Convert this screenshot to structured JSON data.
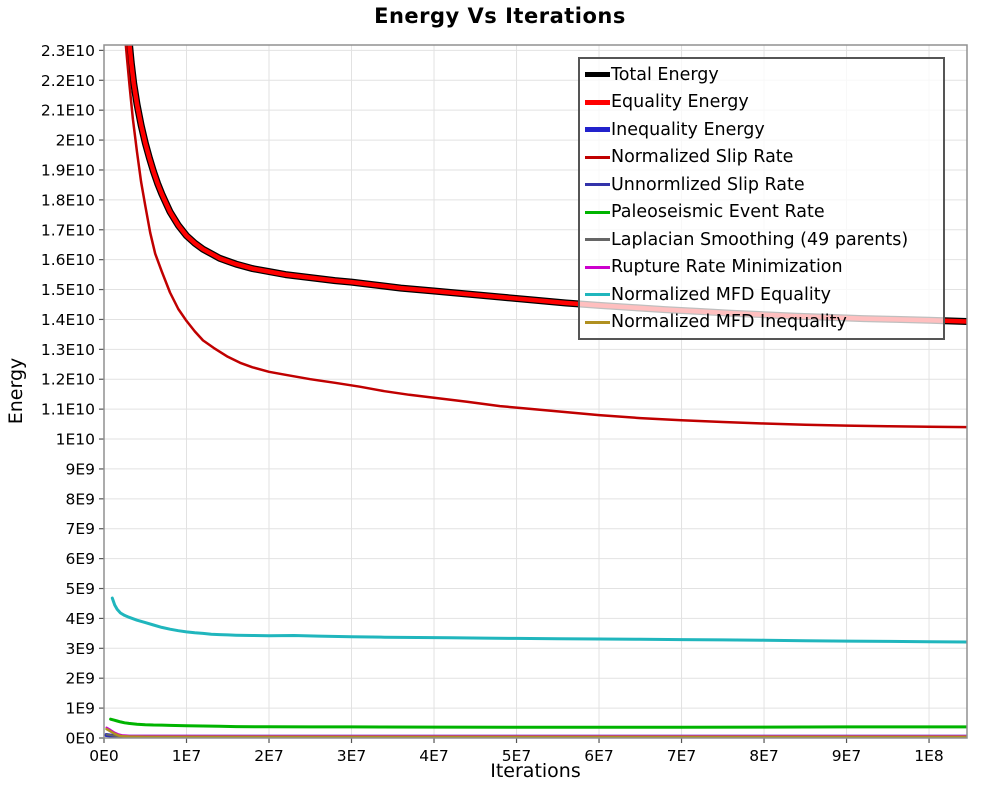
{
  "window": {
    "title": "Energy Vs Iterations"
  },
  "chart_data": {
    "type": "line",
    "title": "Energy Vs Iterations",
    "xlabel": "Iterations",
    "ylabel": "Energy",
    "grid": true,
    "legend_position": "top-right-inside",
    "legend_background": "rgba(255,255,255,0.75)",
    "xlim_millions": [
      0,
      104.6
    ],
    "ylim_billions": [
      0,
      23.18
    ],
    "x_ticks": {
      "values_millions": [
        0,
        10,
        20,
        30,
        40,
        50,
        60,
        70,
        80,
        90,
        100
      ],
      "labels": [
        "0E0",
        "1E7",
        "2E7",
        "3E7",
        "4E7",
        "5E7",
        "6E7",
        "7E7",
        "8E7",
        "9E7",
        "1E8"
      ]
    },
    "y_ticks": {
      "values_billions": [
        0,
        1,
        2,
        3,
        4,
        5,
        6,
        7,
        8,
        9,
        10,
        11,
        12,
        13,
        14,
        15,
        16,
        17,
        18,
        19,
        20,
        21,
        22,
        23
      ],
      "labels": [
        "0E0",
        "1E9",
        "2E9",
        "3E9",
        "4E9",
        "5E9",
        "6E9",
        "7E9",
        "8E9",
        "9E9",
        "1E10",
        "1.1E10",
        "1.2E10",
        "1.3E10",
        "1.4E10",
        "1.5E10",
        "1.6E10",
        "1.7E10",
        "1.8E10",
        "1.9E10",
        "2E10",
        "2.1E10",
        "2.2E10",
        "2.3E10"
      ]
    },
    "series": [
      {
        "name": "Total Energy",
        "color": "#000000",
        "line_width": 7,
        "legend_thick": true,
        "x_millions": [
          3.05,
          3.3,
          3.6,
          4,
          4.5,
          5,
          5.5,
          6,
          6.5,
          7,
          7.5,
          8,
          9,
          10,
          11,
          12,
          13,
          14,
          15,
          16,
          18,
          20,
          22,
          25,
          28,
          30,
          33,
          36,
          40,
          44,
          48,
          52,
          56,
          60,
          64,
          68,
          72,
          76,
          80,
          84,
          88,
          92,
          96,
          100,
          104.6
        ],
        "y_billions": [
          23.3,
          22.6,
          21.9,
          21.2,
          20.5,
          19.9,
          19.4,
          18.95,
          18.55,
          18.2,
          17.9,
          17.6,
          17.15,
          16.8,
          16.55,
          16.35,
          16.2,
          16.05,
          15.95,
          15.85,
          15.7,
          15.6,
          15.5,
          15.4,
          15.3,
          15.25,
          15.15,
          15.05,
          14.95,
          14.85,
          14.75,
          14.65,
          14.55,
          14.47,
          14.4,
          14.33,
          14.27,
          14.21,
          14.16,
          14.11,
          14.07,
          14.03,
          14.0,
          13.97,
          13.93
        ]
      },
      {
        "name": "Equality Energy",
        "color": "#ff0000",
        "line_width": 4.5,
        "legend_thick": true,
        "x_millions": [
          3.05,
          3.3,
          3.6,
          4,
          4.5,
          5,
          5.5,
          6,
          6.5,
          7,
          7.5,
          8,
          9,
          10,
          11,
          12,
          13,
          14,
          15,
          16,
          18,
          20,
          22,
          25,
          28,
          30,
          33,
          36,
          40,
          44,
          48,
          52,
          56,
          60,
          64,
          68,
          72,
          76,
          80,
          84,
          88,
          92,
          96,
          100,
          104.6
        ],
        "y_billions": [
          23.3,
          22.6,
          21.9,
          21.2,
          20.5,
          19.9,
          19.4,
          18.95,
          18.55,
          18.2,
          17.9,
          17.6,
          17.15,
          16.8,
          16.55,
          16.35,
          16.2,
          16.05,
          15.95,
          15.85,
          15.7,
          15.6,
          15.5,
          15.4,
          15.3,
          15.25,
          15.15,
          15.05,
          14.95,
          14.85,
          14.75,
          14.65,
          14.55,
          14.47,
          14.4,
          14.33,
          14.27,
          14.21,
          14.16,
          14.11,
          14.07,
          14.03,
          14.0,
          13.97,
          13.93
        ]
      },
      {
        "name": "Inequality Energy",
        "color": "#2222cc",
        "line_width": 4,
        "legend_thick": true,
        "x_millions": [
          0.3,
          1.5,
          3,
          104.6
        ],
        "y_billions": [
          0.1,
          0.05,
          0.04,
          0.04
        ]
      },
      {
        "name": "Normalized Slip Rate",
        "color": "#c00000",
        "line_width": 2.5,
        "legend_thick": false,
        "x_millions": [
          2.6,
          2.8,
          3.1,
          3.5,
          4,
          4.5,
          5,
          5.6,
          6.2,
          7,
          8,
          9,
          10,
          11,
          12,
          13.3,
          15,
          16.5,
          18,
          20,
          22,
          25,
          28,
          31,
          34,
          37,
          40,
          44,
          48,
          52,
          56,
          60,
          65,
          70,
          75,
          80,
          85,
          90,
          95,
          100,
          104.6
        ],
        "y_billions": [
          23.3,
          22.7,
          21.8,
          20.7,
          19.6,
          18.6,
          17.8,
          16.9,
          16.2,
          15.6,
          14.9,
          14.35,
          13.95,
          13.6,
          13.3,
          13.05,
          12.75,
          12.55,
          12.4,
          12.25,
          12.15,
          12.0,
          11.88,
          11.75,
          11.6,
          11.48,
          11.38,
          11.25,
          11.1,
          11.0,
          10.9,
          10.8,
          10.7,
          10.63,
          10.57,
          10.52,
          10.48,
          10.45,
          10.43,
          10.41,
          10.4
        ]
      },
      {
        "name": "Unnormlized Slip Rate",
        "color": "#3333aa",
        "line_width": 2,
        "legend_thick": false,
        "x_millions": [
          0.3,
          1.5,
          3,
          104.6
        ],
        "y_billions": [
          0.08,
          0.04,
          0.03,
          0.03
        ]
      },
      {
        "name": "Paleoseismic Event Rate",
        "color": "#00b400",
        "line_width": 3,
        "legend_thick": false,
        "x_millions": [
          0.8,
          1.2,
          1.6,
          2,
          2.5,
          3,
          4,
          5,
          6,
          7,
          8,
          10,
          12,
          14,
          16,
          20,
          25,
          30,
          40,
          50,
          60,
          70,
          80,
          90,
          104.6
        ],
        "y_billions": [
          0.63,
          0.6,
          0.57,
          0.54,
          0.51,
          0.49,
          0.46,
          0.445,
          0.435,
          0.43,
          0.42,
          0.41,
          0.4,
          0.39,
          0.38,
          0.375,
          0.37,
          0.37,
          0.365,
          0.36,
          0.36,
          0.36,
          0.365,
          0.37,
          0.37
        ]
      },
      {
        "name": "Laplacian Smoothing (49 parents)",
        "color": "#666666",
        "line_width": 2,
        "legend_thick": false,
        "x_millions": [
          0.3,
          1.5,
          3,
          104.6
        ],
        "y_billions": [
          0.12,
          0.06,
          0.05,
          0.05
        ]
      },
      {
        "name": "Rupture Rate Minimization",
        "color": "#cc00cc",
        "line_width": 2,
        "legend_thick": false,
        "x_millions": [
          0.3,
          0.8,
          1.3,
          1.8,
          2.3,
          3,
          5,
          104.6
        ],
        "y_billions": [
          0.35,
          0.27,
          0.18,
          0.12,
          0.09,
          0.08,
          0.075,
          0.07
        ]
      },
      {
        "name": "Normalized MFD Equality",
        "color": "#20b6bd",
        "line_width": 3,
        "legend_thick": false,
        "x_millions": [
          1,
          1.3,
          1.6,
          2,
          2.5,
          3,
          3.5,
          4,
          5,
          6,
          7,
          8,
          9,
          10,
          11,
          12,
          13,
          14,
          15,
          16,
          18,
          20,
          23,
          26,
          30,
          34,
          38,
          42,
          46,
          50,
          55,
          60,
          65,
          70,
          75,
          80,
          85,
          90,
          95,
          100,
          104.6
        ],
        "y_billions": [
          4.68,
          4.45,
          4.3,
          4.18,
          4.1,
          4.04,
          3.99,
          3.94,
          3.86,
          3.78,
          3.7,
          3.64,
          3.59,
          3.55,
          3.52,
          3.5,
          3.47,
          3.46,
          3.45,
          3.44,
          3.43,
          3.42,
          3.43,
          3.41,
          3.39,
          3.37,
          3.36,
          3.35,
          3.34,
          3.33,
          3.32,
          3.31,
          3.3,
          3.29,
          3.28,
          3.27,
          3.25,
          3.24,
          3.23,
          3.22,
          3.21
        ]
      },
      {
        "name": "Normalized MFD Inequality",
        "color": "#b09020",
        "line_width": 2.5,
        "legend_thick": false,
        "x_millions": [
          0.3,
          0.8,
          1.3,
          1.8,
          2.3,
          3,
          5,
          104.6
        ],
        "y_billions": [
          0.3,
          0.22,
          0.14,
          0.08,
          0.06,
          0.05,
          0.045,
          0.04
        ]
      }
    ]
  }
}
